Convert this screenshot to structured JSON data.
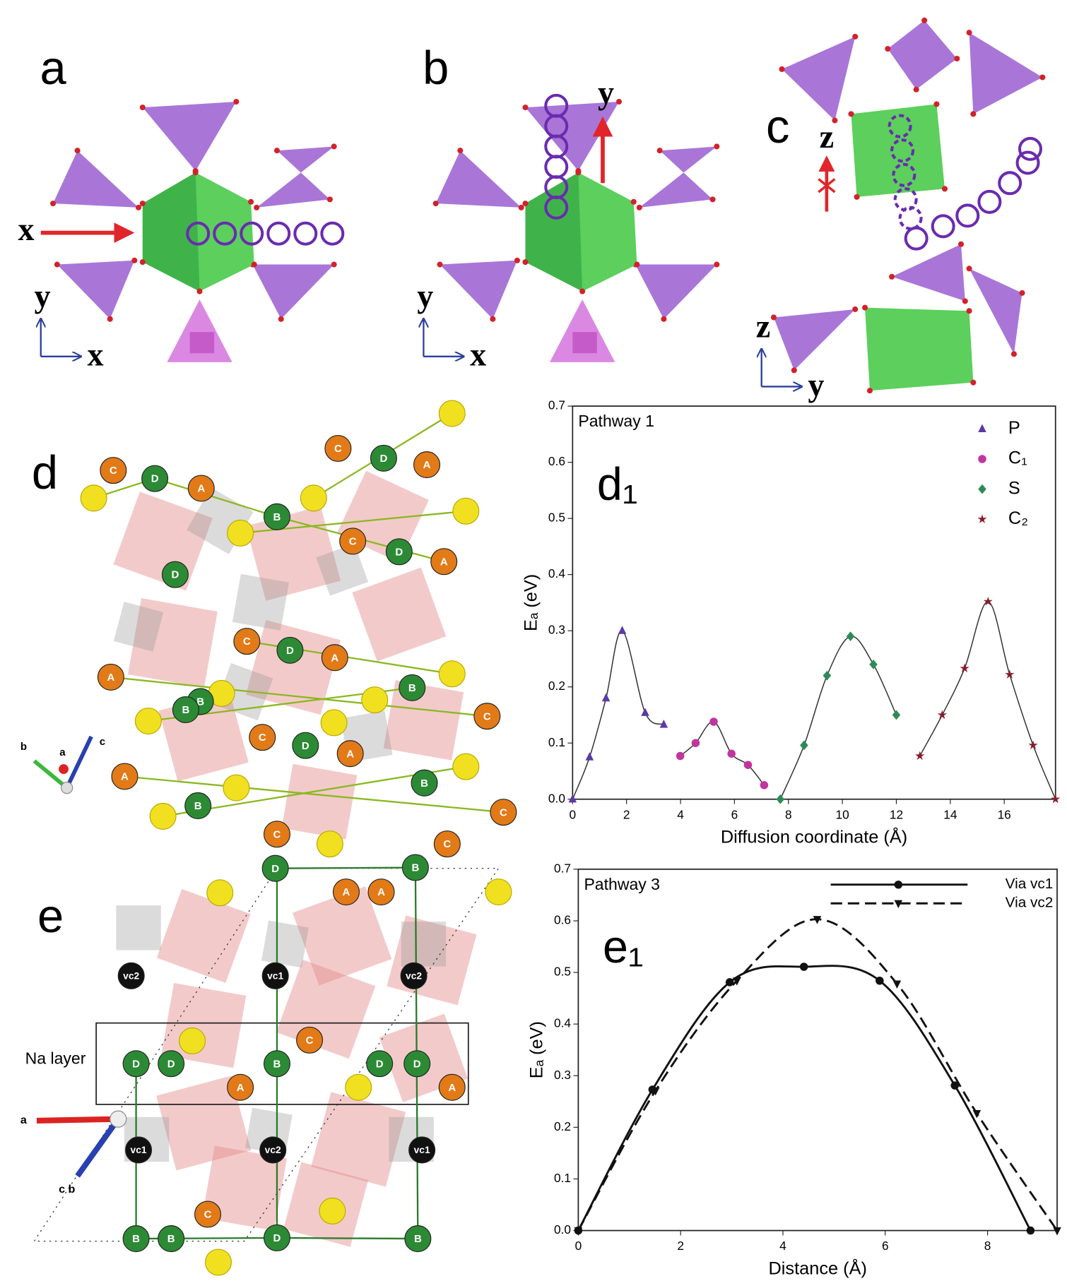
{
  "structure_panels": [
    {
      "label": "a",
      "axis_labels": [
        "x",
        "y",
        "x"
      ]
    },
    {
      "label": "b",
      "axis_labels": [
        "y",
        "y",
        "x"
      ]
    },
    {
      "label": "c",
      "axis_labels": [
        "z",
        "z",
        "y"
      ]
    },
    {
      "label": "d",
      "axis_labels": [
        "b",
        "c",
        "a"
      ],
      "atoms": [
        "C",
        "D",
        "A",
        "B",
        "C",
        "D",
        "A",
        "C",
        "D",
        "A",
        "D",
        "C",
        "D",
        "A",
        "A",
        "B",
        "B",
        "B",
        "C",
        "C",
        "D",
        "A",
        "A",
        "B",
        "B",
        "C",
        "C"
      ]
    },
    {
      "label": "e",
      "axis_labels": [
        "a",
        "c b"
      ],
      "box_label": "Na layer",
      "atoms": [
        "D",
        "B",
        "C",
        "A",
        "A",
        "vc2",
        "vc1",
        "vc2",
        "D",
        "D",
        "B",
        "C",
        "D",
        "D",
        "A",
        "A",
        "vc1",
        "vc2",
        "vc1",
        "C",
        "B",
        "B",
        "D",
        "B"
      ]
    }
  ],
  "chart_data": [
    {
      "type": "line",
      "panel_label": "d₁",
      "title": "Pathway 1",
      "xlabel": "Diffusion coordinate (Å)",
      "ylabel": "Eₐ (eV)",
      "xlim": [
        0,
        17.9
      ],
      "ylim": [
        0,
        0.7
      ],
      "xticks": [
        0,
        2,
        4,
        6,
        8,
        10,
        12,
        14,
        16
      ],
      "yticks": [
        {
          "value": 0,
          "label": "0.0"
        },
        0.1,
        0.2,
        0.3,
        0.4,
        0.5,
        0.6,
        0.7
      ],
      "legend": "upper right",
      "line_color": "#333333",
      "series": [
        {
          "name": "P",
          "color": "#5b3aa8",
          "marker": "triangle",
          "x": [
            0,
            0.63,
            1.24,
            1.84,
            2.69,
            3.38
          ],
          "values": [
            0,
            0.075,
            0.18,
            0.3,
            0.154,
            0.133
          ]
        },
        {
          "name": "C₁",
          "color": "#c0369e",
          "marker": "circle",
          "x": [
            3.99,
            4.56,
            5.23,
            5.89,
            6.5,
            7.1
          ],
          "values": [
            0.077,
            0.1,
            0.138,
            0.081,
            0.061,
            0.025
          ]
        },
        {
          "name": "S",
          "color": "#2e8b57",
          "marker": "diamond",
          "x": [
            7.7,
            8.58,
            9.43,
            10.3,
            11.15,
            12.0
          ],
          "values": [
            0,
            0.096,
            0.22,
            0.29,
            0.24,
            0.15
          ]
        },
        {
          "name": "C₂",
          "color": "#8b1a2a",
          "marker": "star",
          "x": [
            12.87,
            13.7,
            14.53,
            15.4,
            16.2,
            17.07,
            17.9
          ],
          "values": [
            0.077,
            0.15,
            0.233,
            0.352,
            0.222,
            0.096,
            0
          ]
        }
      ]
    },
    {
      "type": "line",
      "panel_label": "e₁",
      "title": "Pathway 3",
      "xlabel": "Distance (Å)",
      "ylabel": "Eₐ (eV)",
      "xlim": [
        0,
        9.36
      ],
      "ylim": [
        0,
        0.7
      ],
      "xticks": [
        0,
        2,
        4,
        6,
        8
      ],
      "yticks": [
        {
          "value": 0,
          "label": "0.0"
        },
        0.1,
        0.2,
        0.3,
        0.4,
        0.5,
        0.6,
        0.7
      ],
      "legend": "upper right",
      "series": [
        {
          "name": "Via vc1",
          "color": "#111111",
          "linestyle": "solid",
          "marker": "circle",
          "x": [
            0,
            1.45,
            2.96,
            4.41,
            5.89,
            7.36,
            8.84
          ],
          "values": [
            0,
            0.273,
            0.481,
            0.511,
            0.484,
            0.281,
            0
          ]
        },
        {
          "name": "Via vc2",
          "color": "#111111",
          "linestyle": "dashed",
          "marker": "triangle-down",
          "x": [
            0,
            1.51,
            3.1,
            4.67,
            6.23,
            7.79,
            9.36
          ],
          "values": [
            0,
            0.271,
            0.484,
            0.603,
            0.478,
            0.227,
            0
          ]
        }
      ]
    }
  ]
}
